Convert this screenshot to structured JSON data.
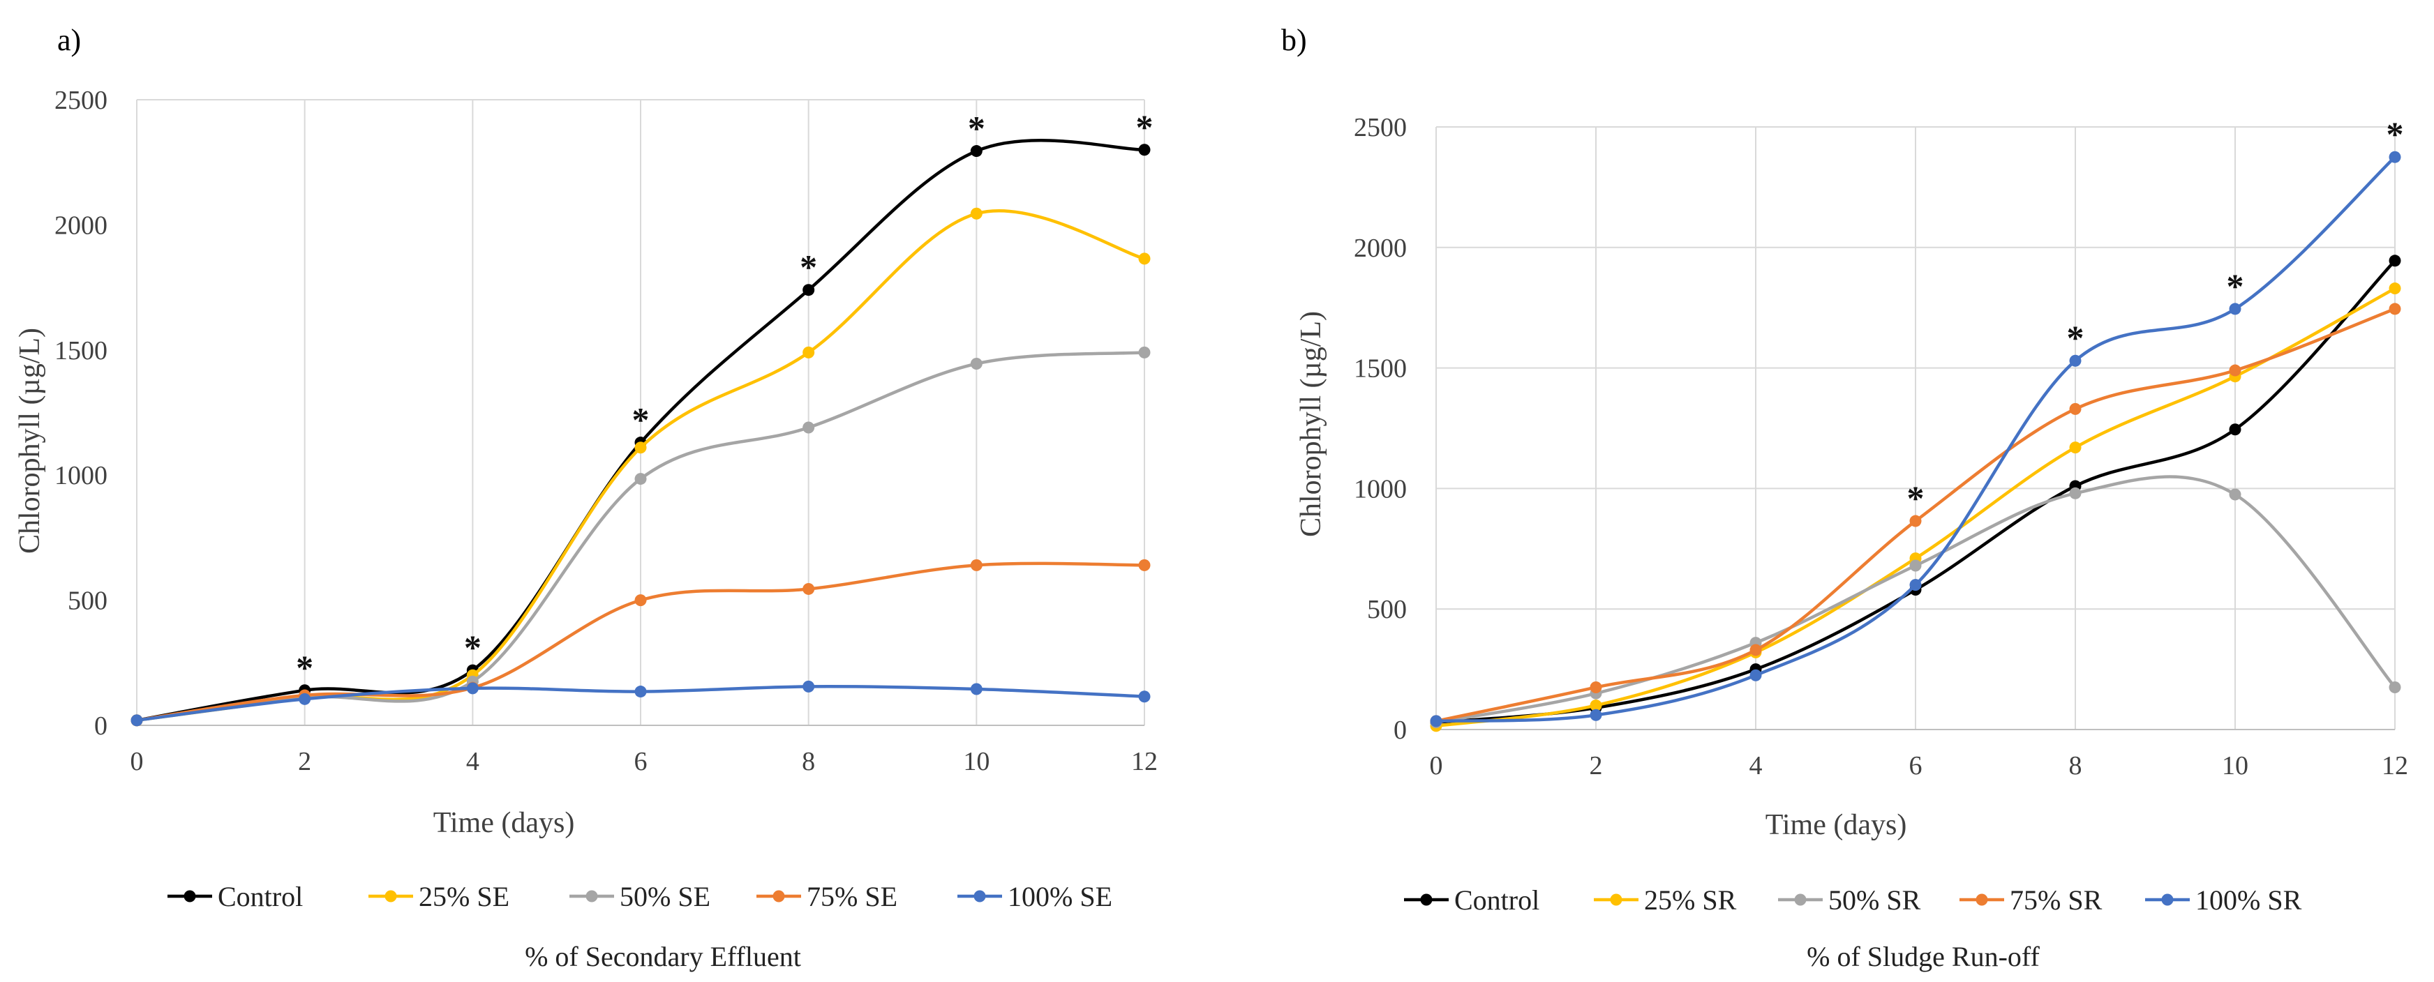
{
  "chart_data": [
    {
      "type": "line",
      "panel": "a)",
      "title": "",
      "xlabel": "Time (days)",
      "ylabel": "Chlorophyll  (µg/L)",
      "xlim": [
        0,
        12
      ],
      "ylim": [
        0,
        2500
      ],
      "xticks": [
        0,
        2,
        4,
        6,
        8,
        10,
        12
      ],
      "yticks": [
        0,
        500,
        1000,
        1500,
        2000,
        2500
      ],
      "grid": "vertical",
      "legend_position": "bottom",
      "caption": "% of Secondary Effluent",
      "x": [
        0,
        2,
        4,
        6,
        8,
        10,
        12
      ],
      "series": [
        {
          "name": "Control",
          "color": "#000000",
          "values": [
            20,
            140,
            220,
            1130,
            1740,
            2295,
            2300
          ]
        },
        {
          "name": "25% SE",
          "color": "#FFC000",
          "values": [
            20,
            110,
            200,
            1110,
            1490,
            2045,
            1865
          ]
        },
        {
          "name": "50% SE",
          "color": "#A5A5A5",
          "values": [
            20,
            110,
            175,
            985,
            1190,
            1445,
            1490
          ]
        },
        {
          "name": "75% SE",
          "color": "#ED7D31",
          "values": [
            20,
            120,
            150,
            500,
            545,
            640,
            640
          ]
        },
        {
          "name": "100% SE",
          "color": "#4472C4",
          "values": [
            20,
            105,
            148,
            135,
            155,
            145,
            115
          ]
        }
      ],
      "significance": {
        "symbol": "*",
        "x": [
          2,
          4,
          6,
          8,
          10,
          12
        ]
      }
    },
    {
      "type": "line",
      "panel": "b)",
      "title": "",
      "xlabel": "Time (days)",
      "ylabel": "Chlorophyll (µg/L)",
      "xlim": [
        0,
        12
      ],
      "ylim": [
        0,
        2500
      ],
      "xticks": [
        0,
        2,
        4,
        6,
        8,
        10,
        12
      ],
      "yticks": [
        0,
        500,
        1000,
        1500,
        2000,
        2500
      ],
      "grid": "both",
      "legend_position": "bottom",
      "caption": "% of Sludge Run-off",
      "x": [
        0,
        2,
        4,
        6,
        8,
        10,
        12
      ],
      "series": [
        {
          "name": "Control",
          "color": "#000000",
          "values": [
            30,
            90,
            250,
            580,
            1010,
            1245,
            1945
          ]
        },
        {
          "name": "25% SR",
          "color": "#FFC000",
          "values": [
            15,
            100,
            320,
            710,
            1170,
            1465,
            1830
          ]
        },
        {
          "name": "50% SR",
          "color": "#A5A5A5",
          "values": [
            30,
            150,
            360,
            680,
            980,
            975,
            175
          ]
        },
        {
          "name": "75% SR",
          "color": "#ED7D31",
          "values": [
            35,
            175,
            330,
            865,
            1330,
            1490,
            1745
          ]
        },
        {
          "name": "100% SR",
          "color": "#4472C4",
          "values": [
            35,
            60,
            225,
            600,
            1530,
            1745,
            2375
          ]
        }
      ],
      "significance": {
        "symbol": "*",
        "x": [
          6,
          8,
          10,
          12
        ]
      }
    }
  ]
}
